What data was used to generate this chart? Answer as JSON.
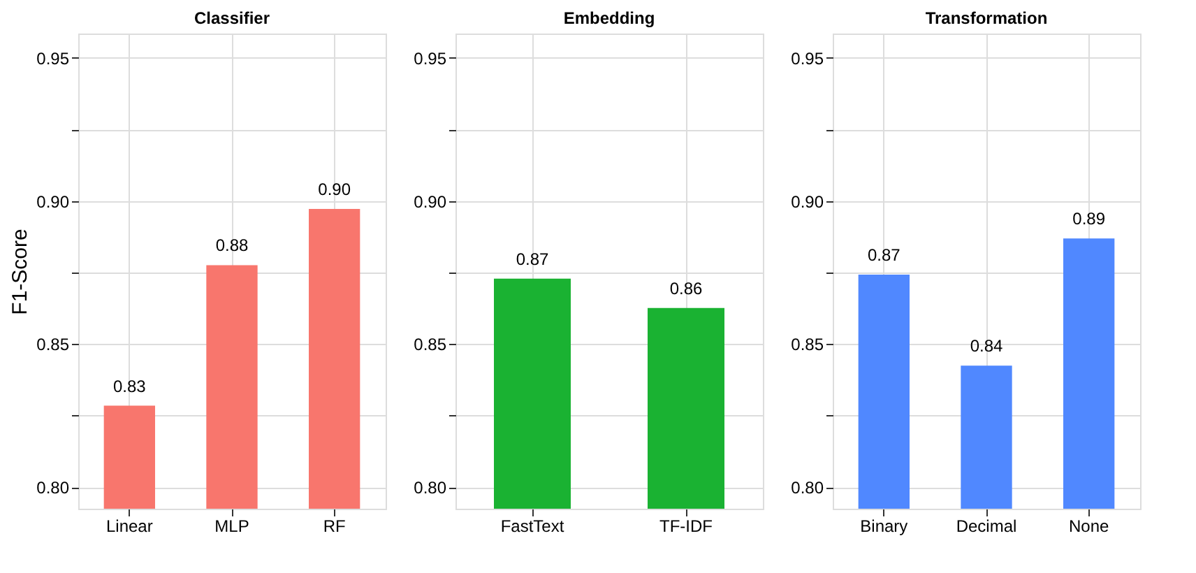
{
  "chart_data": [
    {
      "type": "bar",
      "title": "Classifier",
      "ylabel": "F1-Score",
      "categories": [
        "Linear",
        "MLP",
        "RF"
      ],
      "values": [
        0.8285,
        0.8776,
        0.8972
      ],
      "value_labels": [
        "0.83",
        "0.88",
        "0.90"
      ],
      "color": "#f8766d",
      "ylim": [
        0.7925,
        0.9585
      ],
      "yticks": [
        {
          "value": 0.8,
          "label": "0.80"
        },
        {
          "value": 0.825,
          "label": null
        },
        {
          "value": 0.85,
          "label": "0.85"
        },
        {
          "value": 0.875,
          "label": null
        },
        {
          "value": 0.9,
          "label": "0.90"
        },
        {
          "value": 0.925,
          "label": null
        },
        {
          "value": 0.95,
          "label": "0.95"
        }
      ],
      "grid": true
    },
    {
      "type": "bar",
      "title": "Embedding",
      "categories": [
        "FastText",
        "TF-IDF"
      ],
      "values": [
        0.8729,
        0.8626
      ],
      "value_labels": [
        "0.87",
        "0.86"
      ],
      "color": "#1ab232",
      "ylim": [
        0.7925,
        0.9585
      ],
      "yticks": [
        {
          "value": 0.8,
          "label": "0.80"
        },
        {
          "value": 0.825,
          "label": null
        },
        {
          "value": 0.85,
          "label": "0.85"
        },
        {
          "value": 0.875,
          "label": null
        },
        {
          "value": 0.9,
          "label": "0.90"
        },
        {
          "value": 0.925,
          "label": null
        },
        {
          "value": 0.95,
          "label": "0.95"
        }
      ],
      "grid": true
    },
    {
      "type": "bar",
      "title": "Transformation",
      "categories": [
        "Binary",
        "Decimal",
        "None"
      ],
      "values": [
        0.8743,
        0.8425,
        0.8869
      ],
      "value_labels": [
        "0.87",
        "0.84",
        "0.89"
      ],
      "color": "#5088ff",
      "ylim": [
        0.7925,
        0.9585
      ],
      "yticks": [
        {
          "value": 0.8,
          "label": "0.80"
        },
        {
          "value": 0.825,
          "label": null
        },
        {
          "value": 0.85,
          "label": "0.85"
        },
        {
          "value": 0.875,
          "label": null
        },
        {
          "value": 0.9,
          "label": "0.90"
        },
        {
          "value": 0.925,
          "label": null
        },
        {
          "value": 0.95,
          "label": "0.95"
        }
      ],
      "grid": true
    }
  ]
}
